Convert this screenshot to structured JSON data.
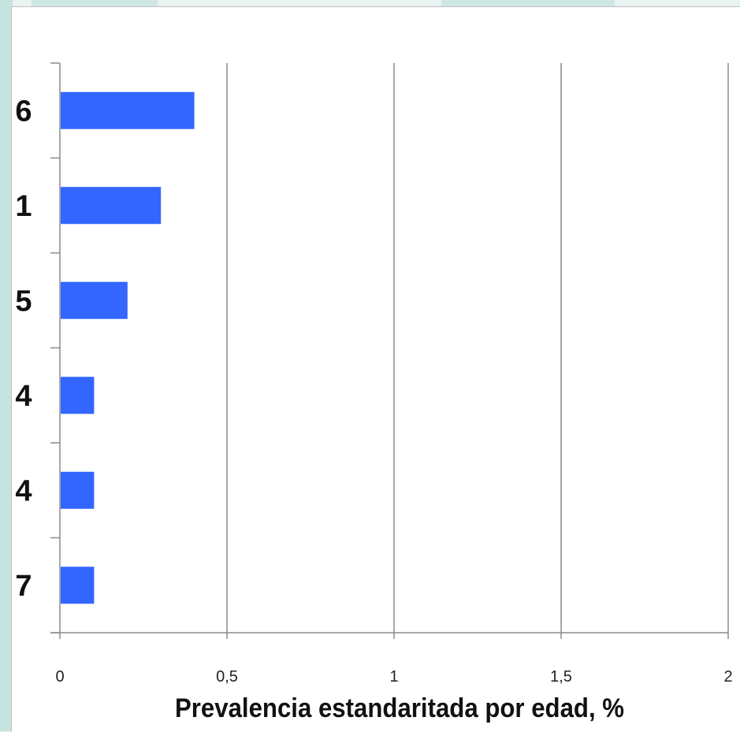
{
  "chart_data": {
    "type": "bar",
    "orientation": "horizontal",
    "categories": [
      "6",
      "1",
      "5",
      "4",
      "4",
      "7"
    ],
    "values": [
      0.4,
      0.3,
      0.2,
      0.1,
      0.1,
      0.1
    ],
    "xlabel": "Prevalencia estandaritada por edad, %",
    "ylabel": "",
    "xlim": [
      0,
      2
    ],
    "x_ticks": [
      0,
      0.5,
      1,
      1.5,
      2
    ],
    "x_tick_labels": [
      "0",
      "0,5",
      "1",
      "1,5",
      "2"
    ],
    "grid": "vertical",
    "legend": "none",
    "bar_color": "#3366ff",
    "grid_color": "#8c8c8c"
  }
}
